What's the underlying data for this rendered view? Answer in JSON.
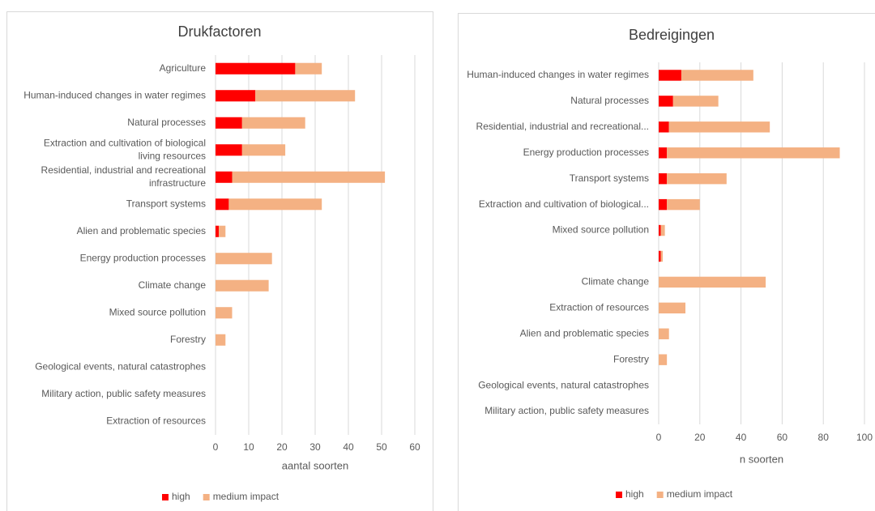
{
  "chart_data": [
    {
      "type": "bar",
      "orientation": "horizontal",
      "stacked": true,
      "title": "Drukfactoren",
      "x_label": "aantal soorten",
      "categories": [
        "Agriculture",
        "Human-induced changes in water regimes",
        "Natural processes",
        "Extraction and cultivation of biological living resources",
        "Residential, industrial and recreational infrastructure",
        "Transport systems",
        "Alien and problematic species",
        "Energy production processes",
        "Climate change",
        "Mixed source pollution",
        "Forestry",
        "Geological events, natural catastrophes",
        "Military action, public safety measures",
        "Extraction of resources"
      ],
      "series": [
        {
          "name": "high",
          "color": "#ff0000",
          "values": [
            24,
            12,
            8,
            8,
            5,
            4,
            1,
            0,
            0,
            0,
            0,
            0,
            0,
            0
          ]
        },
        {
          "name": "medium impact",
          "color": "#f4b183",
          "values": [
            8,
            30,
            19,
            13,
            46,
            28,
            2,
            17,
            16,
            5,
            3,
            0,
            0,
            0
          ]
        }
      ],
      "xlim": [
        0,
        60
      ],
      "xticks": [
        0,
        10,
        20,
        30,
        40,
        50,
        60
      ],
      "grid": true,
      "legend": "bottom"
    },
    {
      "type": "bar",
      "orientation": "horizontal",
      "stacked": true,
      "title": "Bedreigingen",
      "x_label": "n soorten",
      "categories": [
        "Human-induced changes in water regimes",
        "Natural processes",
        "Residential, industrial and recreational...",
        "Energy production processes",
        "Transport systems",
        "Extraction and cultivation of biological...",
        "Mixed source pollution",
        null,
        "Climate change",
        "Extraction of resources",
        "Alien and problematic species",
        "Forestry",
        "Geological events, natural catastrophes",
        "Military action, public safety measures"
      ],
      "series": [
        {
          "name": "high",
          "color": "#ff0000",
          "values": [
            11,
            7,
            5,
            4,
            4,
            4,
            1,
            1,
            0,
            0,
            0,
            0,
            0,
            0
          ]
        },
        {
          "name": "medium impact",
          "color": "#f4b183",
          "values": [
            35,
            22,
            49,
            84,
            29,
            16,
            2,
            1,
            52,
            13,
            5,
            4,
            0,
            0
          ]
        }
      ],
      "xlim": [
        0,
        100
      ],
      "xticks": [
        0,
        20,
        40,
        60,
        80,
        100
      ],
      "grid": true,
      "legend": "bottom"
    }
  ]
}
